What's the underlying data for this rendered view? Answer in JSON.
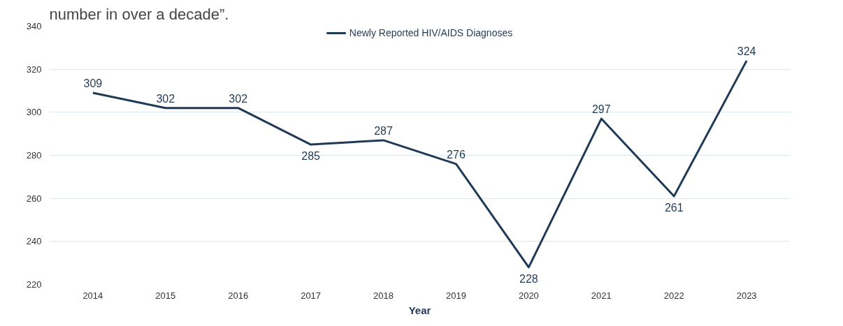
{
  "chart_data": {
    "type": "line",
    "title": "number in over a decade”.",
    "xlabel": "Year",
    "categories": [
      "2014",
      "2015",
      "2016",
      "2017",
      "2018",
      "2019",
      "2020",
      "2021",
      "2022",
      "2023"
    ],
    "series": [
      {
        "name": "Newly Reported HIV/AIDS Diagnoses",
        "color": "#1f3a56",
        "values": [
          309,
          302,
          302,
          285,
          287,
          276,
          228,
          297,
          261,
          324
        ]
      }
    ],
    "ylim": [
      220,
      340
    ],
    "yticks": [
      220,
      240,
      260,
      280,
      300,
      320,
      340
    ],
    "grid": "y",
    "legend": "top",
    "data_labels": true,
    "marker": "none",
    "line_style": "solid"
  }
}
